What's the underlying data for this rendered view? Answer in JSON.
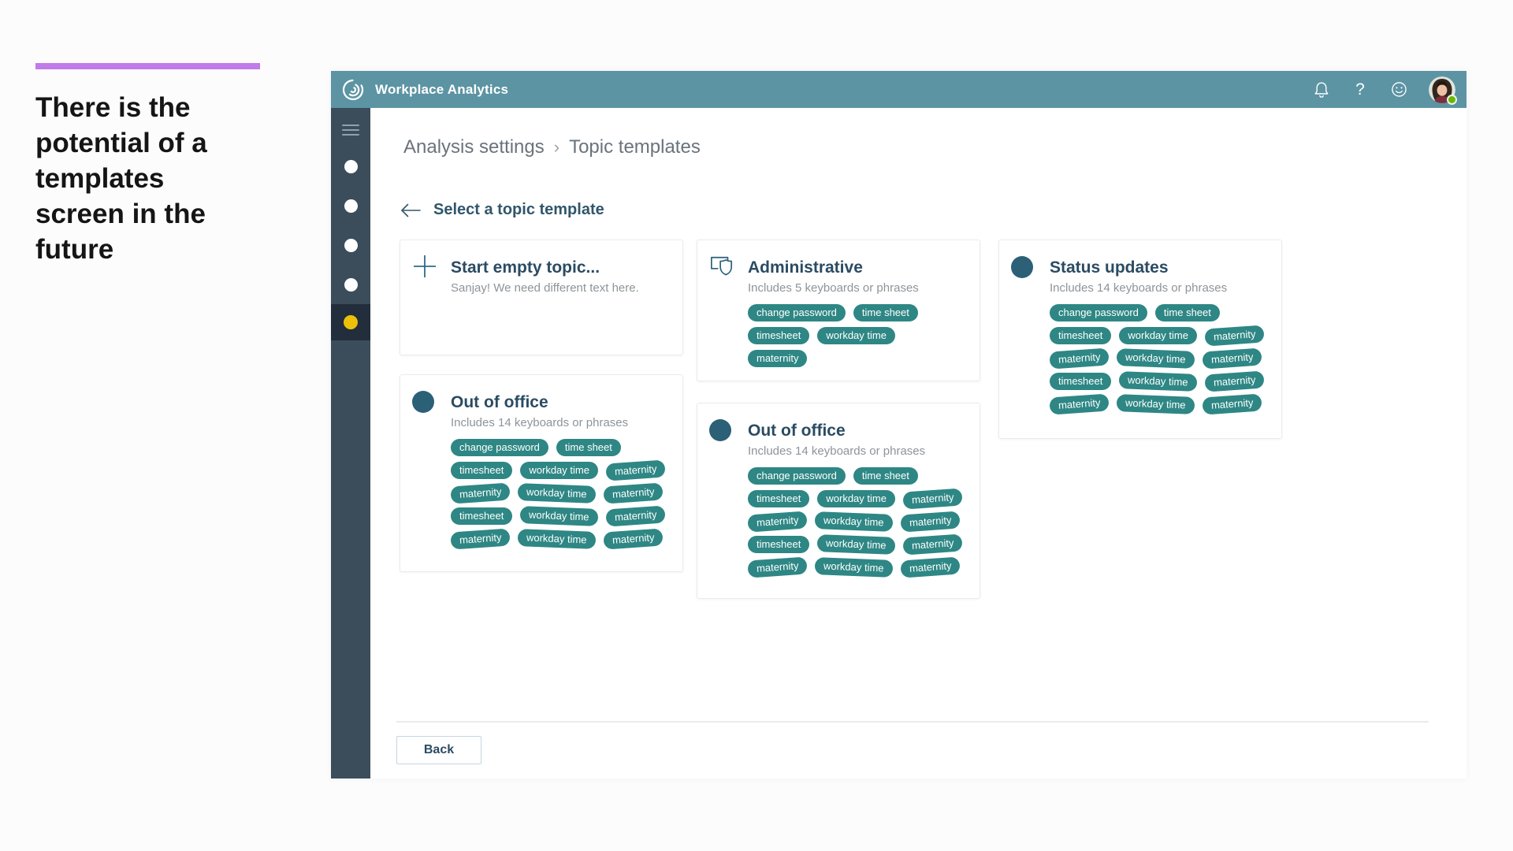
{
  "annotation": {
    "note": "There is the potential of a templates screen in the future"
  },
  "app": {
    "title": "Workplace Analytics",
    "breadcrumb": {
      "parent": "Analysis settings",
      "separator": "›",
      "current": "Topic templates"
    },
    "page_heading": "Select a topic template",
    "help_glyph": "?",
    "back_button": "Back",
    "header_icons": [
      "notifications-icon",
      "help-icon",
      "feedback-smiley-icon",
      "user-avatar"
    ]
  },
  "sidebar": {
    "dot_count": 5,
    "active_index": 4
  },
  "cards": [
    {
      "icon": "plus-icon",
      "title": "Start empty topic...",
      "subtitle": "Sanjay! We need different text here.",
      "chip_rows": []
    },
    {
      "icon": "policy-shield-icon",
      "title": "Administrative",
      "subtitle": "Includes 5 keyboards or phrases",
      "chip_rows": [
        [
          "change password",
          "time sheet"
        ],
        [
          "timesheet",
          "workday time"
        ],
        [
          "maternity"
        ]
      ]
    },
    {
      "icon": "circle-icon",
      "title": "Status updates",
      "subtitle": "Includes 14 keyboards or phrases",
      "chip_rows": [
        [
          "change password",
          "time sheet"
        ],
        [
          "timesheet",
          "workday time",
          "maternity"
        ],
        [
          "maternity",
          "workday time",
          "maternity"
        ],
        [
          "timesheet",
          "workday time",
          "maternity"
        ],
        [
          "maternity",
          "workday time",
          "maternity"
        ]
      ]
    },
    {
      "icon": "circle-icon",
      "title": "Out of office",
      "subtitle": "Includes 14 keyboards or phrases",
      "chip_rows": [
        [
          "change password",
          "time sheet"
        ],
        [
          "timesheet",
          "workday time",
          "maternity"
        ],
        [
          "maternity",
          "workday time",
          "maternity"
        ],
        [
          "timesheet",
          "workday time",
          "maternity"
        ],
        [
          "maternity",
          "workday time",
          "maternity"
        ]
      ]
    },
    {
      "icon": "circle-icon",
      "title": "Out of office",
      "subtitle": "Includes 14 keyboards or phrases",
      "chip_rows": [
        [
          "change password",
          "time sheet"
        ],
        [
          "timesheet",
          "workday time",
          "maternity"
        ],
        [
          "maternity",
          "workday time",
          "maternity"
        ],
        [
          "timesheet",
          "workday time",
          "maternity"
        ],
        [
          "maternity",
          "workday time",
          "maternity"
        ]
      ]
    }
  ],
  "colors": {
    "header_bg": "#5C94A3",
    "sidebar_bg": "#3B4D5B",
    "sidebar_active_bg": "#222E3B",
    "active_dot": "#EDC10A",
    "chip_bg": "#2E8784",
    "icon_teal": "#2B6077",
    "accent_purple": "#C17BE9",
    "presence_green": "#6BB700"
  }
}
